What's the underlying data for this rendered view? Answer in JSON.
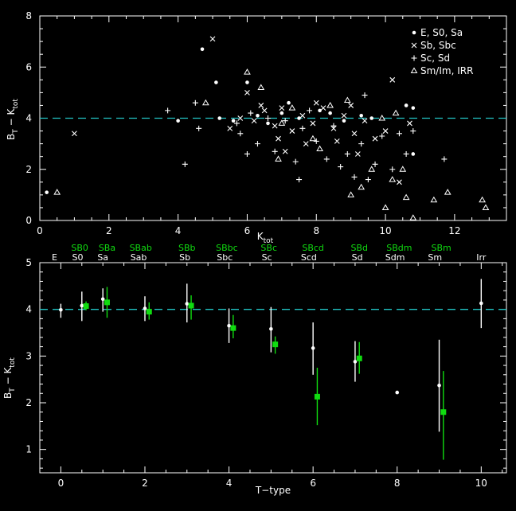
{
  "chart_data": [
    {
      "type": "scatter",
      "xlabel": "K",
      "xlabel_sub": "tot",
      "ylabel": "B",
      "ylabel_sub1": "T",
      "ylabel_mid": " − K",
      "ylabel_sub2": "tot",
      "xlim": [
        0,
        13.5
      ],
      "ylim": [
        0,
        8
      ],
      "xticks": [
        0,
        2,
        4,
        6,
        8,
        10,
        12
      ],
      "yticks": [
        0,
        2,
        4,
        6,
        8
      ],
      "reference_line": {
        "y": 4,
        "color": "#22c4c4",
        "style": "dashed"
      },
      "legend_position": "top-right",
      "series": [
        {
          "name": "E, S0, Sa",
          "marker": "dot",
          "points": [
            [
              0.2,
              1.1
            ],
            [
              4.7,
              6.7
            ],
            [
              5.1,
              5.4
            ],
            [
              6.0,
              5.4
            ],
            [
              5.2,
              4.0
            ],
            [
              5.6,
              3.9
            ],
            [
              6.3,
              4.1
            ],
            [
              7.0,
              4.2
            ],
            [
              7.5,
              4.0
            ],
            [
              8.1,
              4.3
            ],
            [
              8.8,
              3.9
            ],
            [
              9.3,
              4.1
            ],
            [
              10.6,
              4.5
            ],
            [
              10.8,
              4.4
            ],
            [
              10.8,
              2.6
            ],
            [
              4.0,
              3.9
            ],
            [
              6.6,
              3.8
            ],
            [
              7.2,
              4.6
            ],
            [
              8.4,
              4.2
            ],
            [
              9.6,
              4.0
            ]
          ]
        },
        {
          "name": "Sb, Sbc",
          "marker": "cross",
          "points": [
            [
              1.0,
              3.4
            ],
            [
              5.0,
              7.1
            ],
            [
              6.0,
              5.0
            ],
            [
              5.8,
              4.0
            ],
            [
              6.2,
              3.9
            ],
            [
              6.5,
              4.3
            ],
            [
              6.8,
              3.7
            ],
            [
              7.0,
              4.4
            ],
            [
              7.3,
              3.5
            ],
            [
              7.6,
              4.1
            ],
            [
              7.9,
              3.8
            ],
            [
              8.2,
              4.4
            ],
            [
              8.5,
              3.6
            ],
            [
              8.8,
              4.1
            ],
            [
              9.1,
              3.4
            ],
            [
              9.4,
              3.9
            ],
            [
              9.7,
              3.2
            ],
            [
              10.0,
              3.5
            ],
            [
              10.2,
              5.5
            ],
            [
              10.4,
              1.5
            ],
            [
              10.7,
              3.8
            ],
            [
              6.9,
              3.2
            ],
            [
              7.7,
              3.0
            ],
            [
              8.6,
              3.1
            ],
            [
              9.2,
              2.6
            ],
            [
              6.4,
              4.5
            ],
            [
              8.0,
              4.6
            ],
            [
              9.0,
              4.5
            ],
            [
              5.5,
              3.6
            ],
            [
              7.1,
              2.7
            ]
          ]
        },
        {
          "name": "Sc, Sd",
          "marker": "plus",
          "points": [
            [
              3.7,
              4.3
            ],
            [
              4.2,
              2.2
            ],
            [
              4.5,
              4.6
            ],
            [
              4.6,
              3.6
            ],
            [
              5.7,
              3.8
            ],
            [
              6.1,
              4.2
            ],
            [
              6.3,
              3.0
            ],
            [
              6.6,
              4.0
            ],
            [
              6.8,
              2.7
            ],
            [
              7.1,
              3.9
            ],
            [
              7.4,
              2.3
            ],
            [
              7.6,
              3.6
            ],
            [
              7.8,
              4.3
            ],
            [
              8.0,
              3.1
            ],
            [
              8.3,
              2.4
            ],
            [
              8.5,
              3.7
            ],
            [
              8.7,
              2.1
            ],
            [
              8.9,
              2.6
            ],
            [
              9.1,
              1.7
            ],
            [
              9.3,
              3.0
            ],
            [
              9.5,
              1.6
            ],
            [
              9.7,
              2.2
            ],
            [
              9.9,
              3.3
            ],
            [
              10.2,
              2.0
            ],
            [
              10.4,
              3.4
            ],
            [
              10.6,
              2.6
            ],
            [
              10.8,
              3.5
            ],
            [
              11.7,
              2.4
            ],
            [
              9.4,
              4.9
            ],
            [
              6.0,
              2.6
            ],
            [
              7.5,
              1.6
            ],
            [
              5.8,
              3.4
            ]
          ]
        },
        {
          "name": "Sm/Im, IRR",
          "marker": "triangle",
          "points": [
            [
              0.5,
              1.1
            ],
            [
              4.8,
              4.6
            ],
            [
              6.0,
              5.8
            ],
            [
              6.4,
              5.2
            ],
            [
              6.9,
              2.4
            ],
            [
              7.3,
              4.4
            ],
            [
              7.9,
              3.2
            ],
            [
              8.4,
              4.5
            ],
            [
              8.9,
              4.7
            ],
            [
              9.0,
              1.0
            ],
            [
              9.3,
              1.3
            ],
            [
              9.6,
              2.0
            ],
            [
              9.9,
              4.0
            ],
            [
              10.0,
              0.5
            ],
            [
              10.2,
              1.6
            ],
            [
              10.3,
              4.2
            ],
            [
              10.5,
              2.0
            ],
            [
              10.6,
              0.9
            ],
            [
              10.8,
              0.1
            ],
            [
              11.4,
              0.8
            ],
            [
              11.8,
              1.1
            ],
            [
              12.8,
              0.8
            ],
            [
              12.9,
              0.5
            ],
            [
              7.0,
              3.8
            ],
            [
              8.1,
              2.8
            ]
          ]
        }
      ]
    },
    {
      "type": "scatter",
      "xlabel": "T−type",
      "ylabel": "B",
      "ylabel_sub1": "T",
      "ylabel_mid": " − K",
      "ylabel_sub2": "tot",
      "xlim": [
        -0.5,
        10.6
      ],
      "ylim": [
        0.5,
        5
      ],
      "xticks": [
        0,
        2,
        4,
        6,
        8,
        10
      ],
      "yticks": [
        1,
        2,
        3,
        4,
        5
      ],
      "reference_line": {
        "y": 4,
        "color": "#22c4c4",
        "style": "dashed"
      },
      "top_labels_white": [
        {
          "x": -0.15,
          "text": "E"
        },
        {
          "x": 0.4,
          "text": "S0"
        },
        {
          "x": 1.0,
          "text": "Sa"
        },
        {
          "x": 1.85,
          "text": "Sab"
        },
        {
          "x": 2.95,
          "text": "Sb"
        },
        {
          "x": 3.9,
          "text": "Sbc"
        },
        {
          "x": 4.9,
          "text": "Sc"
        },
        {
          "x": 5.9,
          "text": "Scd"
        },
        {
          "x": 7.05,
          "text": "Sd"
        },
        {
          "x": 7.95,
          "text": "Sdm"
        },
        {
          "x": 8.9,
          "text": "Sm"
        },
        {
          "x": 10.0,
          "text": "Irr"
        }
      ],
      "top_labels_green": [
        {
          "x": 0.45,
          "text": "SB0"
        },
        {
          "x": 1.1,
          "text": "SBa"
        },
        {
          "x": 1.9,
          "text": "SBab"
        },
        {
          "x": 3.0,
          "text": "SBb"
        },
        {
          "x": 3.95,
          "text": "SBbc"
        },
        {
          "x": 4.95,
          "text": "SBc"
        },
        {
          "x": 6.0,
          "text": "SBcd"
        },
        {
          "x": 7.1,
          "text": "SBd"
        },
        {
          "x": 8.05,
          "text": "SBdm"
        },
        {
          "x": 9.05,
          "text": "SBm"
        }
      ],
      "series": [
        {
          "color": "#ffffff",
          "marker": "dot",
          "points": [
            {
              "x": 0,
              "y": 3.99,
              "lo": 3.82,
              "hi": 4.12
            },
            {
              "x": 0.5,
              "y": 4.08,
              "lo": 3.75,
              "hi": 4.38
            },
            {
              "x": 1.0,
              "y": 4.22,
              "lo": 3.95,
              "hi": 4.45
            },
            {
              "x": 2.0,
              "y": 4.02,
              "lo": 3.75,
              "hi": 4.28
            },
            {
              "x": 3.0,
              "y": 4.12,
              "lo": 3.72,
              "hi": 4.55
            },
            {
              "x": 4.0,
              "y": 3.65,
              "lo": 3.28,
              "hi": 4.02
            },
            {
              "x": 5.0,
              "y": 3.58,
              "lo": 3.08,
              "hi": 4.05
            },
            {
              "x": 6.0,
              "y": 3.17,
              "lo": 2.6,
              "hi": 3.72
            },
            {
              "x": 7.0,
              "y": 2.88,
              "lo": 2.45,
              "hi": 3.32
            },
            {
              "x": 8.0,
              "y": 2.22,
              "lo": 2.22,
              "hi": 2.22
            },
            {
              "x": 9.0,
              "y": 2.37,
              "lo": 1.38,
              "hi": 3.35
            },
            {
              "x": 10.0,
              "y": 4.13,
              "lo": 3.6,
              "hi": 4.65
            }
          ]
        },
        {
          "color": "#10dc10",
          "marker": "square",
          "points": [
            {
              "x": 0.6,
              "y": 4.07,
              "lo": 3.98,
              "hi": 4.17
            },
            {
              "x": 1.1,
              "y": 4.15,
              "lo": 3.82,
              "hi": 4.48
            },
            {
              "x": 2.1,
              "y": 3.95,
              "lo": 3.78,
              "hi": 4.15
            },
            {
              "x": 3.1,
              "y": 4.08,
              "lo": 3.78,
              "hi": 4.3
            },
            {
              "x": 4.1,
              "y": 3.6,
              "lo": 3.38,
              "hi": 3.88
            },
            {
              "x": 5.1,
              "y": 3.25,
              "lo": 3.05,
              "hi": 3.42
            },
            {
              "x": 6.1,
              "y": 2.13,
              "lo": 1.52,
              "hi": 2.75
            },
            {
              "x": 7.1,
              "y": 2.95,
              "lo": 2.62,
              "hi": 3.3
            },
            {
              "x": 9.1,
              "y": 1.8,
              "lo": 0.78,
              "hi": 2.68
            }
          ]
        }
      ]
    }
  ]
}
